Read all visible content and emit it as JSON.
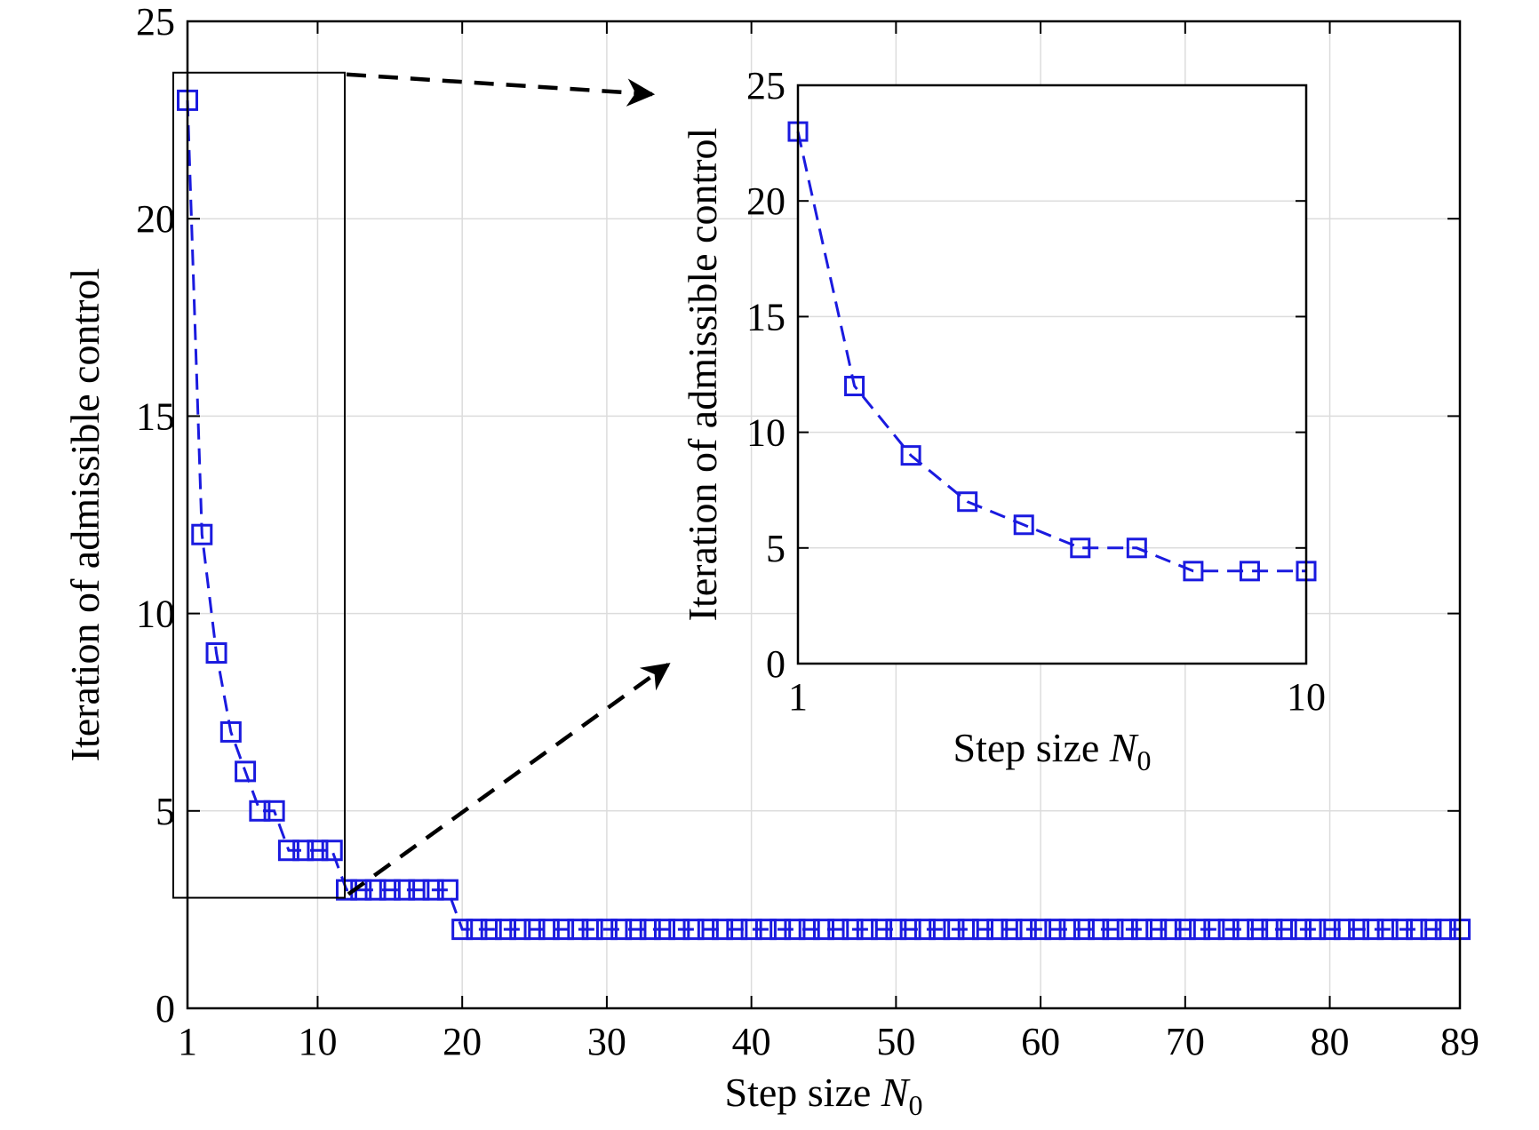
{
  "colors": {
    "series": "#1a1adf",
    "axes": "#000000",
    "grid": "#dcdcdc",
    "zoom_arrow": "#000000"
  },
  "chart_data": [
    {
      "id": "main",
      "type": "line",
      "line_style": "dashed",
      "marker": "square",
      "xlabel": "Step size ",
      "xlabel_symbol": "N",
      "xlabel_subscript": "0",
      "ylabel": "Iteration of admissible control",
      "xlim": [
        1,
        89
      ],
      "ylim": [
        0,
        25
      ],
      "xticks": [
        1,
        10,
        20,
        30,
        40,
        50,
        60,
        70,
        80,
        89
      ],
      "xtick_labels": [
        "1",
        "10",
        "20",
        "30",
        "40",
        "50",
        "60",
        "70",
        "80",
        "89"
      ],
      "yticks": [
        0,
        5,
        10,
        15,
        20,
        25
      ],
      "ytick_labels": [
        "0",
        "5",
        "10",
        "15",
        "20",
        "25"
      ],
      "grid": true,
      "series": [
        {
          "x": [
            1,
            2,
            3,
            4,
            5,
            6,
            7,
            8,
            9,
            10,
            11,
            12,
            13,
            14,
            15,
            16,
            17,
            18,
            19,
            20,
            21,
            22,
            23,
            24,
            25,
            26,
            27,
            28,
            29,
            30,
            31,
            32,
            33,
            34,
            35,
            36,
            37,
            38,
            39,
            40,
            41,
            42,
            43,
            44,
            45,
            46,
            47,
            48,
            49,
            50,
            51,
            52,
            53,
            54,
            55,
            56,
            57,
            58,
            59,
            60,
            61,
            62,
            63,
            64,
            65,
            66,
            67,
            68,
            69,
            70,
            71,
            72,
            73,
            74,
            75,
            76,
            77,
            78,
            79,
            80,
            81,
            82,
            83,
            84,
            85,
            86,
            87,
            88,
            89
          ],
          "y": [
            23,
            12,
            9,
            7,
            6,
            5,
            5,
            4,
            4,
            4,
            4,
            3,
            3,
            3,
            3,
            3,
            3,
            3,
            3,
            2,
            2,
            2,
            2,
            2,
            2,
            2,
            2,
            2,
            2,
            2,
            2,
            2,
            2,
            2,
            2,
            2,
            2,
            2,
            2,
            2,
            2,
            2,
            2,
            2,
            2,
            2,
            2,
            2,
            2,
            2,
            2,
            2,
            2,
            2,
            2,
            2,
            2,
            2,
            2,
            2,
            2,
            2,
            2,
            2,
            2,
            2,
            2,
            2,
            2,
            2,
            2,
            2,
            2,
            2,
            2,
            2,
            2,
            2,
            2,
            2,
            2,
            2,
            2,
            2,
            2,
            2,
            2,
            2,
            2
          ]
        }
      ],
      "zoom_region": {
        "x": [
          1,
          12
        ],
        "y": [
          2.8,
          23.7
        ]
      }
    },
    {
      "id": "inset",
      "type": "line",
      "line_style": "dashed",
      "marker": "square",
      "xlabel": "Step size ",
      "xlabel_symbol": "N",
      "xlabel_subscript": "0",
      "ylabel": "Iteration of admissible control",
      "xlim": [
        1,
        10
      ],
      "ylim": [
        0,
        25
      ],
      "xticks": [
        1,
        10
      ],
      "xtick_labels": [
        "1",
        "10"
      ],
      "yticks": [
        0,
        5,
        10,
        15,
        20,
        25
      ],
      "ytick_labels": [
        "0",
        "5",
        "10",
        "15",
        "20",
        "25"
      ],
      "grid": true,
      "series": [
        {
          "x": [
            1,
            2,
            3,
            4,
            5,
            6,
            7,
            8,
            9,
            10
          ],
          "y": [
            23,
            12,
            9,
            7,
            6,
            5,
            5,
            4,
            4,
            4
          ]
        }
      ]
    }
  ]
}
